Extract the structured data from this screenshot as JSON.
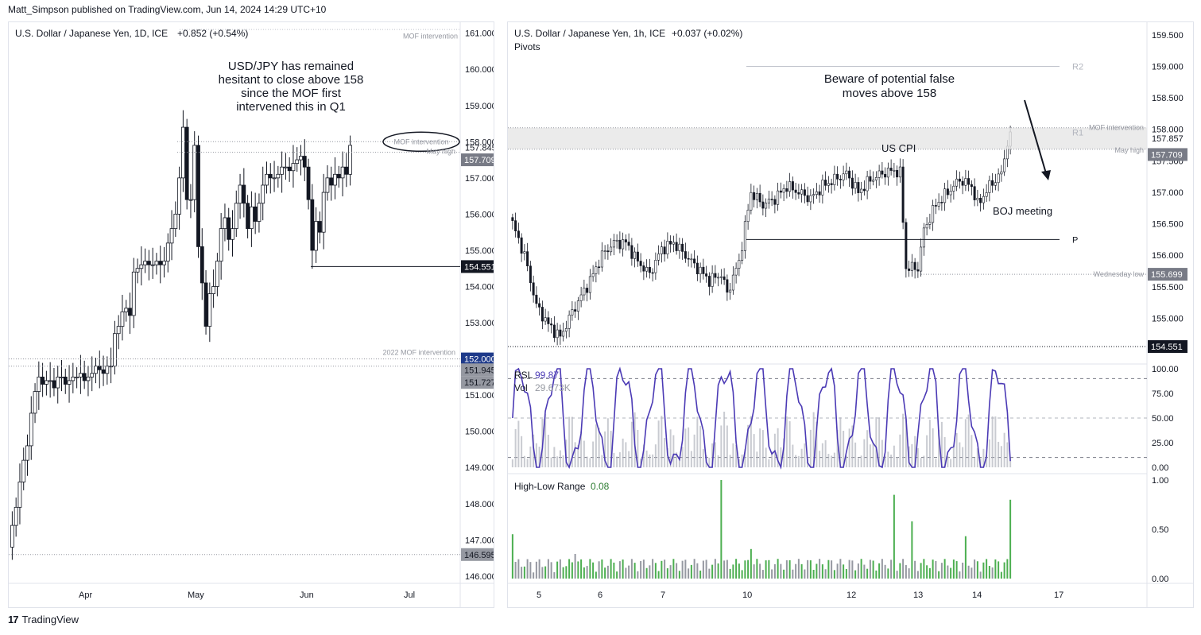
{
  "header": {
    "published": "Matt_Simpson published on TradingView.com, Jun 14, 2024 14:29 UTC+10"
  },
  "footer": {
    "logo_text": "TradingView",
    "logo_icon": "tradingview-logo-icon"
  },
  "colors": {
    "up": "#ffffff",
    "down": "#131722",
    "rsi": "#4b3ab5",
    "vol": "#b2b5be",
    "hl_up": "#4caf50",
    "hl_grey": "#9598a1",
    "grid": "#e0e3eb",
    "text": "#131722",
    "axis": "#787b86"
  },
  "daily": {
    "title": "U.S. Dollar / Japanese Yen, 1D, ICE",
    "change": "+0.852 (+0.54%)",
    "annotation": [
      "USD/JPY has remained",
      "hesitant to close above 158",
      "since the MOF first",
      "intervened this in Q1"
    ],
    "yticks": [
      "161.000",
      "160.000",
      "159.000",
      "158.000",
      "157.000",
      "156.000",
      "155.000",
      "154.000",
      "153.000",
      "152.000",
      "151.000",
      "150.000",
      "149.000",
      "148.000",
      "147.000",
      "146.000"
    ],
    "xticks": [
      "Apr",
      "May",
      "Jun",
      "Jul"
    ],
    "lines": {
      "mof": "MOF intervention",
      "may_high": "May high",
      "mof_2022": "2022 MOF intervention"
    },
    "price_labels": {
      "last": "157.845",
      "may_high": "157.709",
      "level_a": "154.551",
      "level_b": "152.000",
      "level_c": "151.945",
      "level_d": "151.727",
      "level_e": "146.595"
    },
    "chart_data": {
      "type": "candlestick",
      "ylim": [
        145.8,
        161.3
      ],
      "closes": [
        147.4,
        147.9,
        148.6,
        149.2,
        149.6,
        150.5,
        151.1,
        151.5,
        151.3,
        151.4,
        151.4,
        151.2,
        151.5,
        151.5,
        151.3,
        151.4,
        151.5,
        151.5,
        151.6,
        151.4,
        151.5,
        151.6,
        151.8,
        151.7,
        151.6,
        151.8,
        151.8,
        152.7,
        152.9,
        153.3,
        153.4,
        153.2,
        154.4,
        154.5,
        154.6,
        154.7,
        154.6,
        154.6,
        154.7,
        154.6,
        154.7,
        155.2,
        155.6,
        156.0,
        157.0,
        158.4,
        156.4,
        156.4,
        157.9,
        155.1,
        154.1,
        152.9,
        153.8,
        154.0,
        154.7,
        155.6,
        155.9,
        155.3,
        155.6,
        156.3,
        156.8,
        156.3,
        155.6,
        156.2,
        155.8,
        156.3,
        156.8,
        157.1,
        157.0,
        157.0,
        157.1,
        157.3,
        157.3,
        157.2,
        157.4,
        157.5,
        157.6,
        157.3,
        156.4,
        155.0,
        155.8,
        155.5,
        156.6,
        157.0,
        156.8,
        157.1,
        157.0,
        157.3,
        157.1,
        157.9
      ],
      "start_open": 146.8
    },
    "labels": {
      "mof_level": 158.0,
      "may_high": 157.709,
      "level_a": 154.551,
      "level_b": 152.0,
      "level_e": 146.595
    }
  },
  "hourly": {
    "title": "U.S. Dollar / Japanese Yen, 1h, ICE",
    "change": "+0.037 (+0.02%)",
    "pivots_label": "Pivots",
    "annotation": [
      "Beware of potential false",
      "moves above 158"
    ],
    "events": {
      "us_cpi": "US CPI",
      "boj": "BOJ meeting"
    },
    "pivot_labels": {
      "r2": "R2",
      "r1": "R1",
      "p": "P"
    },
    "lines": {
      "mof": "MOF intervention",
      "may_high": "May high",
      "wed_low": "Wednesday low"
    },
    "yticks": [
      "159.500",
      "159.000",
      "158.500",
      "158.000",
      "157.500",
      "157.000",
      "156.500",
      "156.000",
      "155.500",
      "155.000"
    ],
    "xticks": [
      "5",
      "6",
      "7",
      "10",
      "12",
      "13",
      "14",
      "17"
    ],
    "price_labels": {
      "last": "157.857",
      "may_high": "157.709",
      "wed_low": "155.699",
      "level_a": "154.551"
    },
    "rsi": {
      "label": "RSL",
      "value": "99.87",
      "vol_label": "Vol",
      "vol_value": "29.673K",
      "ticks": [
        "100.00",
        "75.00",
        "50.00",
        "25.00",
        "0.00"
      ]
    },
    "hl": {
      "label": "High-Low Range",
      "value": "0.08",
      "ticks": [
        "1.00",
        "0.50",
        "0.00"
      ]
    },
    "chart_data": {
      "type": "candlestick",
      "ylim": [
        154.35,
        159.7
      ],
      "anchors": [
        [
          0,
          156.5
        ],
        [
          4,
          156.0
        ],
        [
          8,
          155.2
        ],
        [
          12,
          154.9
        ],
        [
          16,
          154.7
        ],
        [
          20,
          155.1
        ],
        [
          26,
          155.6
        ],
        [
          30,
          156.0
        ],
        [
          34,
          156.2
        ],
        [
          38,
          156.2
        ],
        [
          42,
          155.9
        ],
        [
          46,
          155.7
        ],
        [
          50,
          156.1
        ],
        [
          54,
          156.2
        ],
        [
          58,
          156.0
        ],
        [
          62,
          155.8
        ],
        [
          66,
          155.6
        ],
        [
          70,
          155.7
        ],
        [
          72,
          155.4
        ],
        [
          76,
          155.9
        ],
        [
          80,
          157.0
        ],
        [
          84,
          156.8
        ],
        [
          88,
          156.9
        ],
        [
          92,
          157.1
        ],
        [
          96,
          157.0
        ],
        [
          100,
          156.9
        ],
        [
          104,
          157.1
        ],
        [
          108,
          157.2
        ],
        [
          112,
          157.3
        ],
        [
          116,
          157.0
        ],
        [
          120,
          157.2
        ],
        [
          124,
          157.3
        ],
        [
          128,
          157.35
        ],
        [
          130,
          157.3
        ],
        [
          132,
          155.8
        ],
        [
          136,
          155.8
        ],
        [
          138,
          156.4
        ],
        [
          142,
          156.8
        ],
        [
          146,
          157.0
        ],
        [
          150,
          157.2
        ],
        [
          154,
          157.1
        ],
        [
          156,
          156.8
        ],
        [
          160,
          157.1
        ],
        [
          164,
          157.3
        ],
        [
          166,
          157.8
        ],
        [
          167,
          157.86
        ]
      ]
    },
    "levels": {
      "r2": 159.0,
      "r1": 157.95,
      "mof": 158.0,
      "may_high": 157.709,
      "p": 156.25,
      "wed_low": 155.699,
      "level_a": 154.551
    }
  }
}
